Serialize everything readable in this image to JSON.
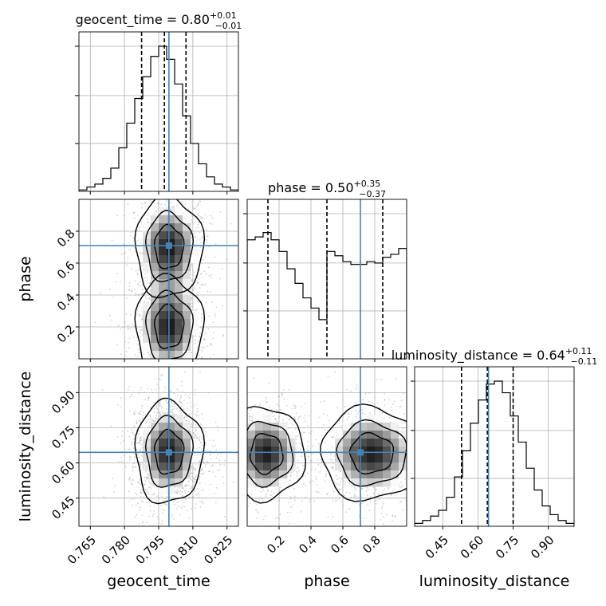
{
  "chart_data": {
    "type": "corner",
    "parameters": [
      "geocent_time",
      "phase",
      "luminosity_distance"
    ],
    "truth_color": "#4682b4",
    "truths": {
      "geocent_time": 0.7995,
      "phase": 0.71,
      "luminosity_distance": 0.645
    },
    "titles": {
      "geocent_time": {
        "name": "geocent_time",
        "median": "0.80",
        "plus": "+0.01",
        "minus": "−0.01"
      },
      "phase": {
        "name": "phase",
        "median": "0.50",
        "plus": "+0.35",
        "minus": "−0.37"
      },
      "luminosity_distance": {
        "name": "luminosity_distance",
        "median": "0.64",
        "plus": "+0.11",
        "minus": "−0.11"
      }
    },
    "axes": {
      "geocent_time": {
        "range": [
          0.76,
          0.83
        ],
        "ticks": [
          0.765,
          0.78,
          0.795,
          0.81,
          0.825
        ],
        "tick_labels": [
          "0.765",
          "0.780",
          "0.795",
          "0.810",
          "0.825"
        ]
      },
      "phase": {
        "range": [
          0.0,
          1.0
        ],
        "ticks": [
          0.2,
          0.4,
          0.6,
          0.8
        ],
        "tick_labels": [
          "0.2",
          "0.4",
          "0.6",
          "0.8"
        ]
      },
      "luminosity_distance": {
        "range": [
          0.33,
          1.01
        ],
        "ticks": [
          0.45,
          0.6,
          0.75,
          0.9
        ],
        "tick_labels": [
          "0.45",
          "0.60",
          "0.75",
          "0.90"
        ]
      }
    },
    "histograms": {
      "geocent_time": {
        "heights": [
          0.01,
          0.03,
          0.05,
          0.09,
          0.16,
          0.3,
          0.47,
          0.64,
          0.79,
          0.93,
          1.0,
          0.91,
          0.74,
          0.52,
          0.33,
          0.19,
          0.1,
          0.05,
          0.03,
          0.01
        ],
        "quantiles": [
          0.7875,
          0.7975,
          0.807
        ]
      },
      "phase": {
        "heights": [
          0.82,
          0.84,
          0.87,
          0.82,
          0.74,
          0.62,
          0.52,
          0.42,
          0.35,
          0.27,
          0.74,
          0.71,
          0.67,
          0.65,
          0.65,
          0.67,
          0.66,
          0.7,
          0.72,
          0.76
        ],
        "quantiles": [
          0.13,
          0.5,
          0.85
        ]
      },
      "luminosity_distance": {
        "heights": [
          0.02,
          0.04,
          0.07,
          0.11,
          0.2,
          0.34,
          0.52,
          0.71,
          0.87,
          0.98,
          1.0,
          0.92,
          0.76,
          0.58,
          0.4,
          0.25,
          0.14,
          0.08,
          0.04,
          0.02
        ],
        "quantiles": [
          0.53,
          0.64,
          0.75
        ]
      }
    },
    "grid": true
  }
}
